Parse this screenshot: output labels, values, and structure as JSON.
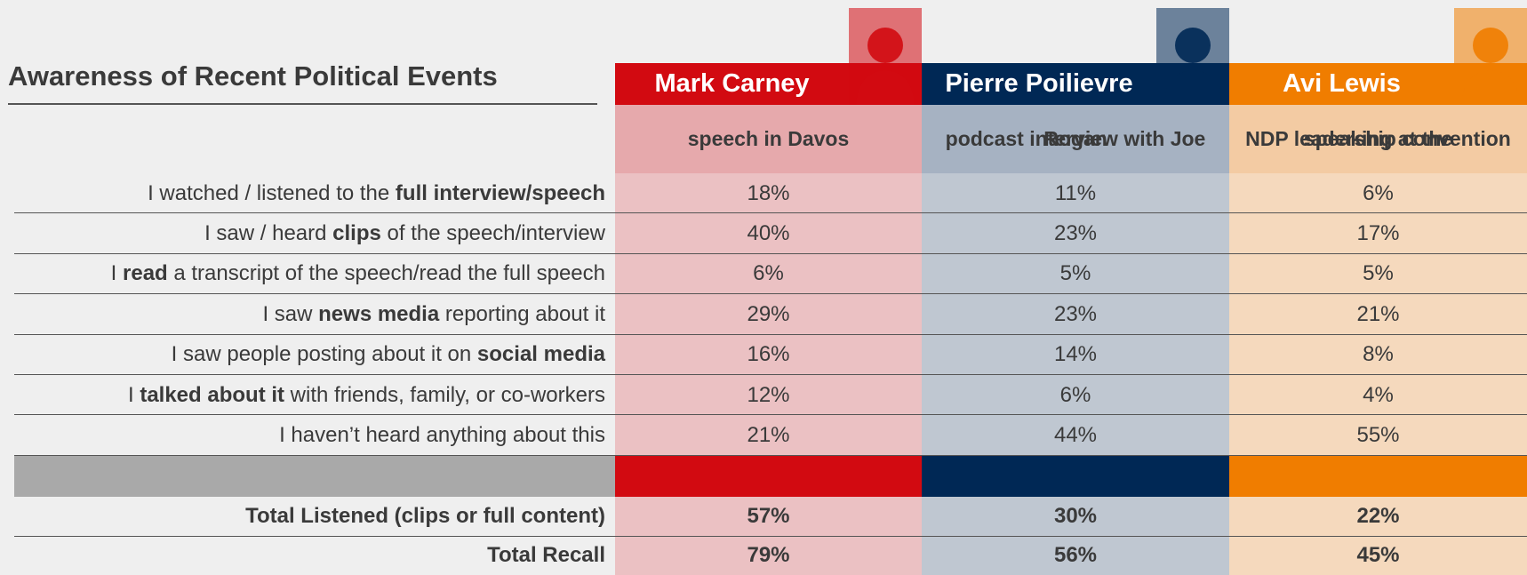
{
  "title": "Awareness of Recent Political Events",
  "columns": [
    {
      "name": "Mark Carney",
      "event": [
        "speech in Davos"
      ],
      "color": "#d20a11",
      "sub_color": "#e6a9ac",
      "body_color": "#ebc1c3"
    },
    {
      "name": "Pierre Poilievre",
      "event": [
        "podcast interview with Joe",
        "Rogan"
      ],
      "color": "#002855",
      "sub_color": "#a6b2c2",
      "body_color": "#bfc7d1"
    },
    {
      "name": "Avi Lewis",
      "event": [
        "speaking at the",
        "NDP leadership convention"
      ],
      "color": "#f07d00",
      "sub_color": "#f3cba3",
      "body_color": "#f5d9bd"
    }
  ],
  "rows": [
    {
      "label": [
        {
          "text": "I watched / listened to the "
        },
        {
          "text": "full interview/speech",
          "bold": true
        }
      ],
      "values": [
        "18%",
        "11%",
        "6%"
      ]
    },
    {
      "label": [
        {
          "text": "I saw / heard "
        },
        {
          "text": "clips",
          "bold": true
        },
        {
          "text": " of the speech/interview"
        }
      ],
      "values": [
        "40%",
        "23%",
        "17%"
      ]
    },
    {
      "label": [
        {
          "text": "I "
        },
        {
          "text": "read",
          "bold": true
        },
        {
          "text": " a transcript of the speech/read the full speech"
        }
      ],
      "values": [
        "6%",
        "5%",
        "5%"
      ]
    },
    {
      "label": [
        {
          "text": "I saw "
        },
        {
          "text": "news media",
          "bold": true
        },
        {
          "text": " reporting about it"
        }
      ],
      "values": [
        "29%",
        "23%",
        "21%"
      ]
    },
    {
      "label": [
        {
          "text": "I saw people posting about it on "
        },
        {
          "text": "social media",
          "bold": true
        }
      ],
      "values": [
        "16%",
        "14%",
        "8%"
      ]
    },
    {
      "label": [
        {
          "text": "I "
        },
        {
          "text": "talked about it",
          "bold": true
        },
        {
          "text": " with friends, family, or co-workers"
        }
      ],
      "values": [
        "12%",
        "6%",
        "4%"
      ]
    },
    {
      "label": [
        {
          "text": "I haven’t heard anything about this"
        }
      ],
      "values": [
        "21%",
        "44%",
        "55%"
      ]
    }
  ],
  "totals": [
    {
      "label": "Total Listened (clips or full content)",
      "values": [
        "57%",
        "30%",
        "22%"
      ]
    },
    {
      "label": "Total Recall",
      "values": [
        "79%",
        "56%",
        "45%"
      ]
    }
  ]
}
